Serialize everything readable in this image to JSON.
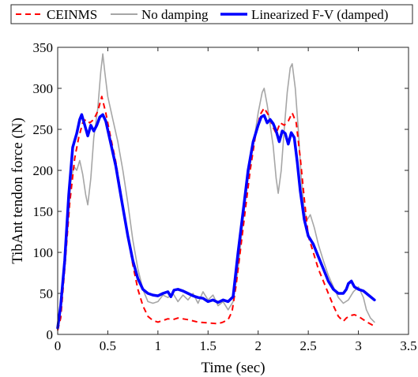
{
  "chart_data": {
    "type": "line",
    "xlabel": "Time (sec)",
    "ylabel": "TibAnt tendon force (N)",
    "xlim": [
      0,
      3.5
    ],
    "ylim": [
      0,
      350
    ],
    "xticks": [
      0,
      0.5,
      1,
      1.5,
      2,
      2.5,
      3,
      3.5
    ],
    "xtick_labels": [
      "0",
      "0.5",
      "1",
      "1.5",
      "2",
      "2.5",
      "3",
      "3.5"
    ],
    "yticks": [
      0,
      50,
      100,
      150,
      200,
      250,
      300,
      350
    ],
    "ytick_labels": [
      "0",
      "50",
      "100",
      "150",
      "200",
      "250",
      "300",
      "350"
    ],
    "legend_position": "top",
    "series": [
      {
        "name": "CEINMS",
        "color": "#ff0000",
        "style": "dashed",
        "points": [
          [
            0,
            5
          ],
          [
            0.03,
            20
          ],
          [
            0.07,
            80
          ],
          [
            0.12,
            160
          ],
          [
            0.17,
            215
          ],
          [
            0.21,
            240
          ],
          [
            0.25,
            258
          ],
          [
            0.28,
            262
          ],
          [
            0.32,
            258
          ],
          [
            0.36,
            262
          ],
          [
            0.4,
            272
          ],
          [
            0.44,
            290
          ],
          [
            0.48,
            270
          ],
          [
            0.52,
            245
          ],
          [
            0.58,
            210
          ],
          [
            0.64,
            165
          ],
          [
            0.7,
            120
          ],
          [
            0.75,
            85
          ],
          [
            0.8,
            55
          ],
          [
            0.85,
            35
          ],
          [
            0.9,
            22
          ],
          [
            0.95,
            17
          ],
          [
            1.0,
            15
          ],
          [
            1.05,
            17
          ],
          [
            1.1,
            19
          ],
          [
            1.15,
            18
          ],
          [
            1.2,
            20
          ],
          [
            1.3,
            18
          ],
          [
            1.4,
            15
          ],
          [
            1.5,
            14
          ],
          [
            1.6,
            13
          ],
          [
            1.65,
            15
          ],
          [
            1.7,
            18
          ],
          [
            1.74,
            28
          ],
          [
            1.78,
            60
          ],
          [
            1.82,
            100
          ],
          [
            1.87,
            150
          ],
          [
            1.92,
            200
          ],
          [
            1.97,
            240
          ],
          [
            2.02,
            268
          ],
          [
            2.06,
            276
          ],
          [
            2.1,
            268
          ],
          [
            2.14,
            255
          ],
          [
            2.18,
            245
          ],
          [
            2.22,
            258
          ],
          [
            2.26,
            255
          ],
          [
            2.3,
            260
          ],
          [
            2.34,
            270
          ],
          [
            2.38,
            258
          ],
          [
            2.42,
            215
          ],
          [
            2.46,
            165
          ],
          [
            2.5,
            120
          ],
          [
            2.55,
            100
          ],
          [
            2.6,
            80
          ],
          [
            2.65,
            65
          ],
          [
            2.7,
            50
          ],
          [
            2.75,
            35
          ],
          [
            2.8,
            22
          ],
          [
            2.85,
            16
          ],
          [
            2.88,
            20
          ],
          [
            2.92,
            23
          ],
          [
            2.96,
            24
          ],
          [
            3.0,
            22
          ],
          [
            3.05,
            18
          ],
          [
            3.1,
            14
          ],
          [
            3.16,
            10
          ]
        ]
      },
      {
        "name": "No damping",
        "color": "#a6a6a6",
        "style": "solid",
        "points": [
          [
            0,
            5
          ],
          [
            0.03,
            30
          ],
          [
            0.06,
            70
          ],
          [
            0.1,
            130
          ],
          [
            0.13,
            185
          ],
          [
            0.16,
            205
          ],
          [
            0.19,
            200
          ],
          [
            0.22,
            212
          ],
          [
            0.25,
            195
          ],
          [
            0.28,
            170
          ],
          [
            0.3,
            158
          ],
          [
            0.33,
            190
          ],
          [
            0.36,
            240
          ],
          [
            0.4,
            275
          ],
          [
            0.43,
            320
          ],
          [
            0.45,
            342
          ],
          [
            0.47,
            320
          ],
          [
            0.5,
            290
          ],
          [
            0.55,
            262
          ],
          [
            0.6,
            235
          ],
          [
            0.65,
            200
          ],
          [
            0.7,
            160
          ],
          [
            0.75,
            115
          ],
          [
            0.8,
            80
          ],
          [
            0.85,
            55
          ],
          [
            0.9,
            40
          ],
          [
            0.95,
            38
          ],
          [
            1.0,
            40
          ],
          [
            1.05,
            48
          ],
          [
            1.1,
            45
          ],
          [
            1.15,
            50
          ],
          [
            1.2,
            40
          ],
          [
            1.25,
            48
          ],
          [
            1.3,
            42
          ],
          [
            1.35,
            50
          ],
          [
            1.4,
            38
          ],
          [
            1.45,
            52
          ],
          [
            1.5,
            42
          ],
          [
            1.55,
            48
          ],
          [
            1.6,
            35
          ],
          [
            1.65,
            40
          ],
          [
            1.7,
            30
          ],
          [
            1.75,
            40
          ],
          [
            1.8,
            80
          ],
          [
            1.85,
            140
          ],
          [
            1.9,
            190
          ],
          [
            1.95,
            230
          ],
          [
            2.0,
            270
          ],
          [
            2.04,
            295
          ],
          [
            2.06,
            300
          ],
          [
            2.09,
            280
          ],
          [
            2.12,
            255
          ],
          [
            2.15,
            230
          ],
          [
            2.18,
            190
          ],
          [
            2.2,
            172
          ],
          [
            2.23,
            200
          ],
          [
            2.26,
            250
          ],
          [
            2.29,
            295
          ],
          [
            2.32,
            325
          ],
          [
            2.34,
            330
          ],
          [
            2.37,
            300
          ],
          [
            2.4,
            250
          ],
          [
            2.43,
            190
          ],
          [
            2.46,
            150
          ],
          [
            2.49,
            140
          ],
          [
            2.52,
            146
          ],
          [
            2.56,
            130
          ],
          [
            2.6,
            110
          ],
          [
            2.65,
            90
          ],
          [
            2.7,
            72
          ],
          [
            2.75,
            58
          ],
          [
            2.8,
            45
          ],
          [
            2.85,
            38
          ],
          [
            2.9,
            42
          ],
          [
            2.95,
            52
          ],
          [
            3.0,
            58
          ],
          [
            3.05,
            45
          ],
          [
            3.08,
            30
          ],
          [
            3.12,
            20
          ],
          [
            3.16,
            15
          ]
        ]
      },
      {
        "name": "Linearized F-V (damped)",
        "color": "#0000ff",
        "style": "solid-thick",
        "points": [
          [
            0,
            8
          ],
          [
            0.03,
            35
          ],
          [
            0.07,
            90
          ],
          [
            0.11,
            170
          ],
          [
            0.15,
            228
          ],
          [
            0.19,
            245
          ],
          [
            0.22,
            262
          ],
          [
            0.24,
            268
          ],
          [
            0.27,
            255
          ],
          [
            0.3,
            242
          ],
          [
            0.33,
            255
          ],
          [
            0.36,
            248
          ],
          [
            0.39,
            255
          ],
          [
            0.42,
            265
          ],
          [
            0.45,
            268
          ],
          [
            0.48,
            260
          ],
          [
            0.52,
            238
          ],
          [
            0.58,
            205
          ],
          [
            0.64,
            162
          ],
          [
            0.7,
            120
          ],
          [
            0.75,
            90
          ],
          [
            0.8,
            68
          ],
          [
            0.85,
            55
          ],
          [
            0.9,
            50
          ],
          [
            0.95,
            48
          ],
          [
            1.0,
            47
          ],
          [
            1.05,
            50
          ],
          [
            1.1,
            52
          ],
          [
            1.13,
            46
          ],
          [
            1.16,
            54
          ],
          [
            1.2,
            55
          ],
          [
            1.25,
            53
          ],
          [
            1.3,
            50
          ],
          [
            1.35,
            47
          ],
          [
            1.4,
            45
          ],
          [
            1.45,
            44
          ],
          [
            1.5,
            40
          ],
          [
            1.55,
            42
          ],
          [
            1.6,
            39
          ],
          [
            1.65,
            42
          ],
          [
            1.7,
            40
          ],
          [
            1.75,
            46
          ],
          [
            1.8,
            100
          ],
          [
            1.85,
            150
          ],
          [
            1.9,
            200
          ],
          [
            1.95,
            235
          ],
          [
            2.0,
            255
          ],
          [
            2.03,
            265
          ],
          [
            2.06,
            267
          ],
          [
            2.09,
            258
          ],
          [
            2.12,
            262
          ],
          [
            2.15,
            257
          ],
          [
            2.18,
            248
          ],
          [
            2.21,
            235
          ],
          [
            2.24,
            248
          ],
          [
            2.27,
            245
          ],
          [
            2.3,
            232
          ],
          [
            2.33,
            246
          ],
          [
            2.36,
            240
          ],
          [
            2.39,
            210
          ],
          [
            2.42,
            175
          ],
          [
            2.46,
            140
          ],
          [
            2.5,
            120
          ],
          [
            2.55,
            110
          ],
          [
            2.6,
            95
          ],
          [
            2.65,
            80
          ],
          [
            2.7,
            65
          ],
          [
            2.75,
            55
          ],
          [
            2.8,
            50
          ],
          [
            2.85,
            50
          ],
          [
            2.88,
            55
          ],
          [
            2.9,
            62
          ],
          [
            2.93,
            65
          ],
          [
            2.96,
            58
          ],
          [
            3.0,
            55
          ],
          [
            3.05,
            53
          ],
          [
            3.1,
            48
          ],
          [
            3.16,
            42
          ]
        ]
      }
    ]
  }
}
